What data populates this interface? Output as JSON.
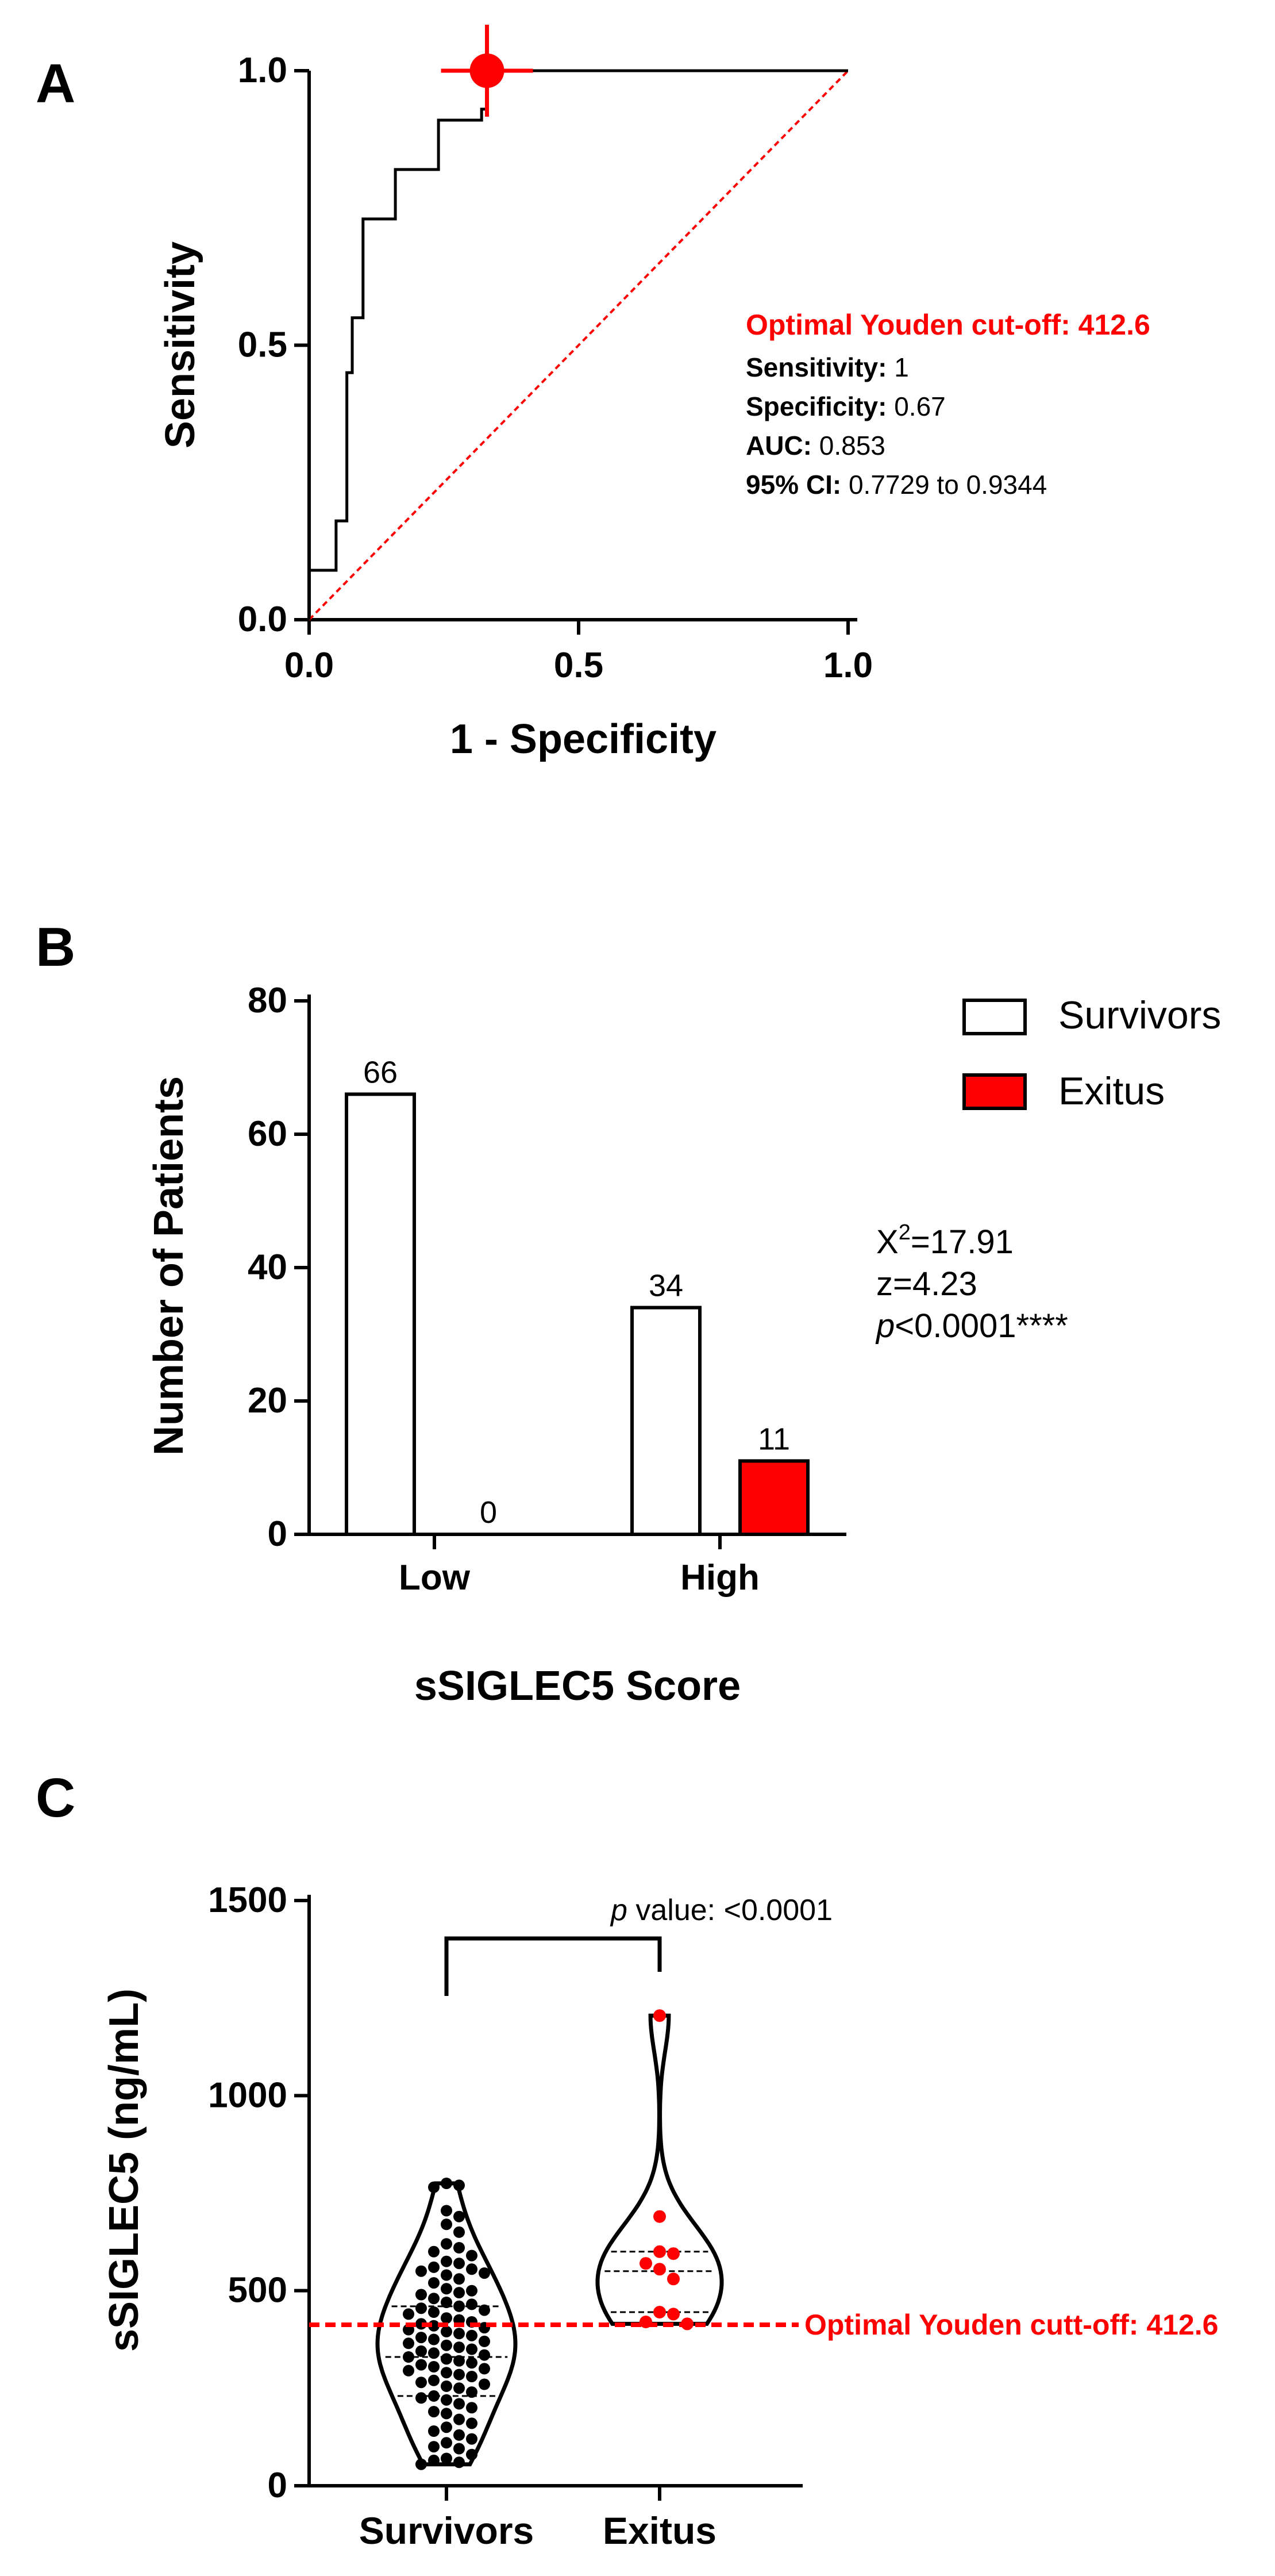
{
  "colors": {
    "accent": "#ff0000",
    "axis": "#000000",
    "survivor_fill": "#ffffff",
    "exitus_fill": "#ff0000"
  },
  "panels": {
    "a": "A",
    "b": "B",
    "c": "C"
  },
  "chart_data": [
    {
      "panel": "A",
      "type": "line",
      "title": "",
      "xlabel": "1 - Specificity",
      "ylabel": "Sensitivity",
      "xlim": [
        0,
        1
      ],
      "ylim": [
        0,
        1
      ],
      "xticks": [
        "0.0",
        "0.5",
        "1.0"
      ],
      "yticks": [
        "0.0",
        "0.5",
        "1.0"
      ],
      "roc_x": [
        0,
        0,
        0.05,
        0.05,
        0.07,
        0.07,
        0.08,
        0.08,
        0.1,
        0.1,
        0.16,
        0.16,
        0.24,
        0.24,
        0.32,
        0.32,
        0.33,
        0.33,
        1.0
      ],
      "roc_y": [
        0,
        0.09,
        0.09,
        0.18,
        0.18,
        0.45,
        0.45,
        0.55,
        0.55,
        0.73,
        0.73,
        0.82,
        0.82,
        0.91,
        0.91,
        0.93,
        0.93,
        1.0,
        1.0
      ],
      "reference_line": [
        [
          0,
          0
        ],
        [
          1,
          1
        ]
      ],
      "optimal_point": {
        "x": 0.33,
        "y": 1.0
      },
      "annotation": {
        "cutoff": "Optimal Youden cut-off: 412.6",
        "lines": [
          {
            "label": "Sensitivity:",
            "value": "1"
          },
          {
            "label": "Specificity:",
            "value": "0.67"
          },
          {
            "label": "AUC:",
            "value": "0.853"
          },
          {
            "label": "95% CI:",
            "value": "0.7729 to 0.9344"
          }
        ]
      }
    },
    {
      "panel": "B",
      "type": "bar",
      "title": "",
      "xlabel": "sSIGLEC5 Score",
      "ylabel": "Number of Patients",
      "ylim": [
        0,
        80
      ],
      "yticks": [
        "0",
        "20",
        "40",
        "60",
        "80"
      ],
      "categories": [
        "Low",
        "High"
      ],
      "series": [
        {
          "name": "Survivors",
          "values": [
            66,
            34
          ],
          "labels": [
            "66",
            "34"
          ]
        },
        {
          "name": "Exitus",
          "values": [
            0,
            11
          ],
          "labels": [
            "0",
            "11"
          ]
        }
      ],
      "legend": [
        "Survivors",
        "Exitus"
      ],
      "stats": {
        "chi_prefix": "X",
        "chi_sup": "2",
        "chi_value": "=17.91",
        "z": "z=4.23",
        "p_italic": "p",
        "p_rest": "<0.0001****"
      }
    },
    {
      "panel": "C",
      "type": "scatter",
      "title": "",
      "xlabel": "",
      "ylabel": "sSIGLEC5 (ng/mL)",
      "ylim": [
        0,
        1500
      ],
      "yticks": [
        "0",
        "500",
        "1000",
        "1500"
      ],
      "categories": [
        "Survivors",
        "Exitus"
      ],
      "cutoff": {
        "value": 412.6,
        "label": "Optimal Youden cutt-off: 412.6"
      },
      "pvalue": {
        "italic": "p",
        "rest": " value: <0.0001"
      },
      "survivors": [
        775,
        770,
        765,
        705,
        690,
        670,
        650,
        620,
        610,
        600,
        590,
        575,
        570,
        560,
        555,
        550,
        545,
        540,
        530,
        520,
        505,
        500,
        495,
        490,
        480,
        470,
        465,
        460,
        455,
        450,
        445,
        440,
        430,
        425,
        420,
        415,
        410,
        405,
        400,
        395,
        390,
        385,
        380,
        375,
        370,
        365,
        360,
        355,
        350,
        345,
        340,
        335,
        330,
        325,
        320,
        315,
        310,
        305,
        300,
        295,
        290,
        285,
        280,
        270,
        265,
        260,
        255,
        250,
        240,
        230,
        225,
        220,
        210,
        200,
        190,
        185,
        170,
        160,
        150,
        140,
        130,
        120,
        110,
        100,
        95,
        80,
        70,
        65,
        60,
        55
      ],
      "exitus": [
        1205,
        690,
        600,
        595,
        570,
        555,
        530,
        445,
        440,
        420,
        415
      ],
      "survivor_quartiles": [
        230,
        330,
        460
      ],
      "exitus_quartiles": [
        445,
        550,
        600
      ]
    }
  ]
}
